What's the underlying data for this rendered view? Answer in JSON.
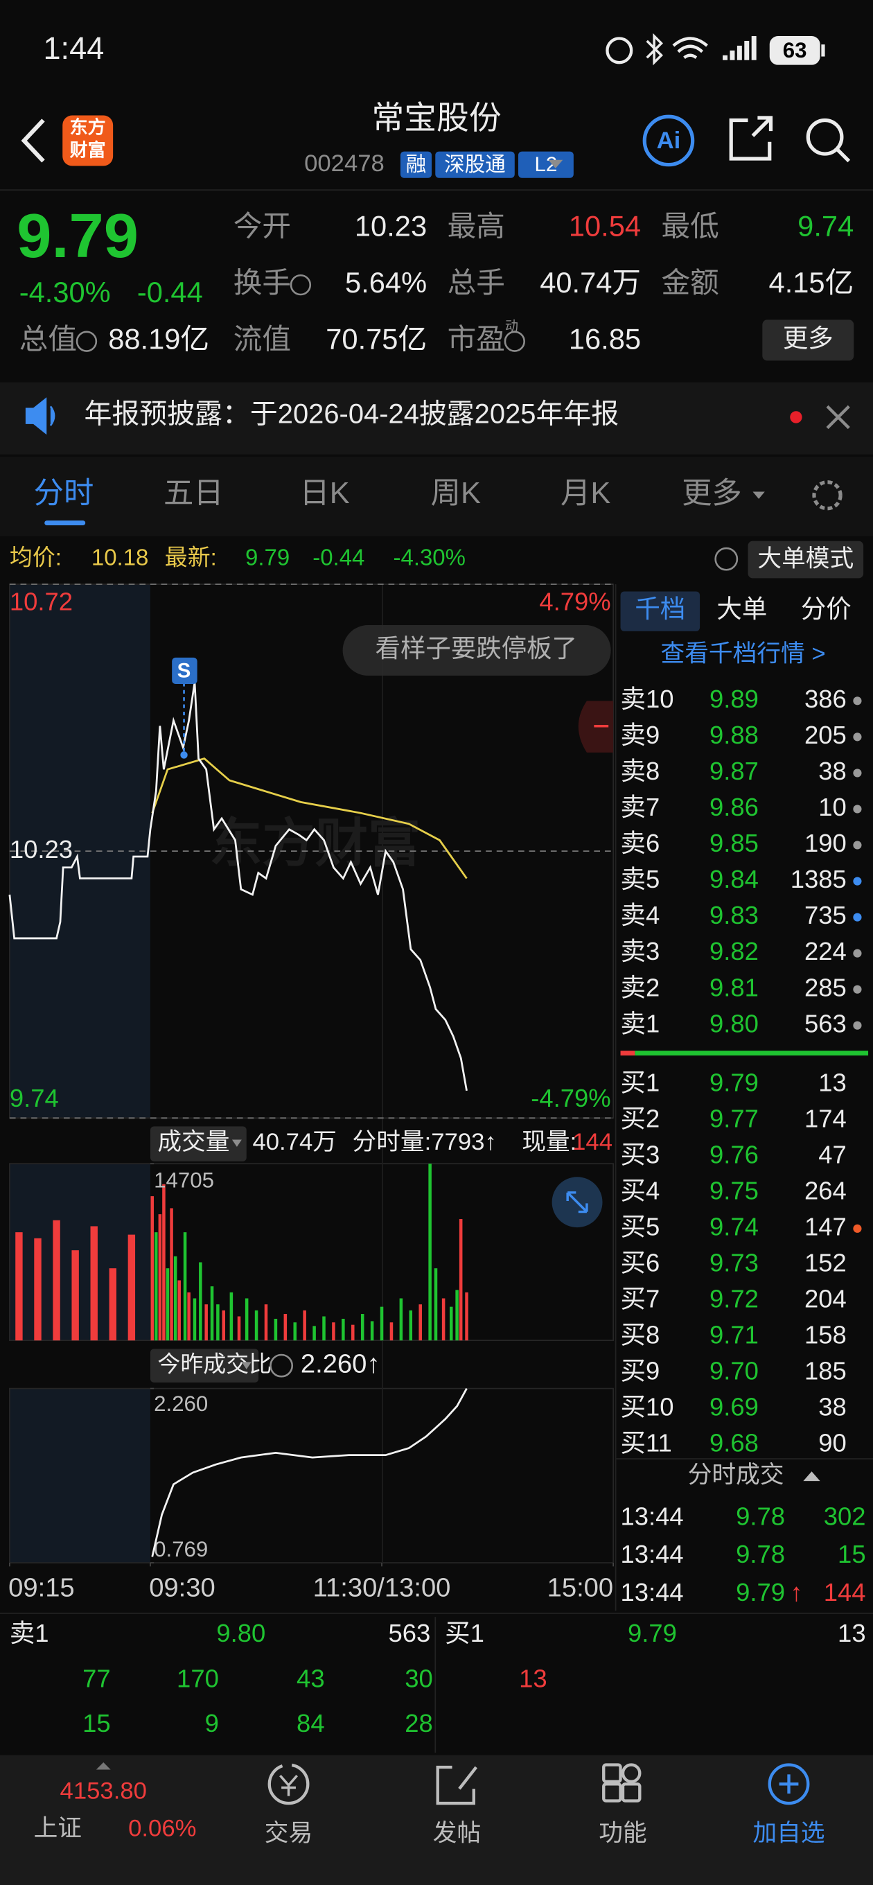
{
  "status_bar": {
    "time": "1:44",
    "battery": "63"
  },
  "header": {
    "logo": [
      "东方",
      "财富"
    ],
    "title": "常宝股份",
    "code": "002478",
    "badges": [
      "融",
      "深股通",
      "L2"
    ],
    "ai_button": "Ai"
  },
  "quote": {
    "price": "9.79",
    "change_pct": "-4.30%",
    "change": "-0.44",
    "stats": [
      {
        "label": "今开",
        "value": "10.23"
      },
      {
        "label": "最高",
        "value": "10.54",
        "color": "#f03c3c"
      },
      {
        "label": "最低",
        "value": "9.74",
        "color": "#1fc431"
      },
      {
        "label": "换手",
        "value": "5.64%"
      },
      {
        "label": "总手",
        "value": "40.74万"
      },
      {
        "label": "金额",
        "value": "4.15亿"
      },
      {
        "label": "总值",
        "value": "88.19亿"
      },
      {
        "label": "流值",
        "value": "70.75亿"
      },
      {
        "label": "市盈",
        "sup": "动",
        "value": "16.85"
      }
    ],
    "more": "更多"
  },
  "notice": "年报预披露：于2026-04-24披露2025年年报",
  "tabs": [
    "分时",
    "五日",
    "日K",
    "周K",
    "月K",
    "更多"
  ],
  "info_bar": {
    "avg_label": "均价:",
    "avg": "10.18",
    "last_label": "最新:",
    "last": "9.79",
    "change": "-0.44",
    "change_pct": "-4.30%",
    "mode_button": "大单模式"
  },
  "chart_data": [
    {
      "type": "line",
      "xlim": [
        -15,
        240
      ],
      "ylim": [
        9.74,
        10.72
      ],
      "yticks": [
        10.72,
        10.23,
        9.74
      ],
      "y2lim": [
        -4.79,
        4.79
      ],
      "y2ticks": [
        {
          "value": 4.79,
          "label": "4.79%"
        },
        {
          "value": -4.79,
          "label": "-4.79%"
        }
      ],
      "annotations": [
        "看样子要跌停板了",
        "S"
      ],
      "watermark": "东方财富",
      "series": [
        {
          "color": "#f2f2f2",
          "x": [
            -15,
            -14.5,
            -10,
            -9.6,
            -9.3,
            -8.4,
            -7.8,
            -7.5,
            -2,
            -1.8,
            -0.3,
            0,
            3,
            5,
            7,
            12,
            17,
            20,
            23,
            25,
            29,
            33,
            37,
            44,
            47,
            53,
            56,
            60,
            65,
            72,
            77,
            81,
            85,
            90,
            95,
            100,
            104,
            109,
            114,
            118,
            122,
            126,
            131,
            135,
            140,
            145,
            148,
            153,
            157,
            161,
            164
          ],
          "values": [
            10.15,
            10.07,
            10.07,
            10.1,
            10.2,
            10.2,
            10.22,
            10.18,
            10.18,
            10.22,
            10.22,
            10.27,
            10.34,
            10.46,
            10.38,
            10.47,
            10.42,
            10.47,
            10.54,
            10.4,
            10.38,
            10.27,
            10.29,
            10.25,
            10.16,
            10.15,
            10.19,
            10.18,
            10.24,
            10.27,
            10.26,
            10.25,
            10.27,
            10.25,
            10.2,
            10.18,
            10.21,
            10.17,
            10.2,
            10.15,
            10.23,
            10.21,
            10.16,
            10.05,
            10.03,
            9.98,
            9.94,
            9.92,
            9.89,
            9.85,
            9.79
          ]
        },
        {
          "color": "#e6cf4a",
          "x": [
            1,
            9,
            28,
            41,
            78,
            109,
            134,
            150,
            164
          ],
          "values": [
            10.3,
            10.38,
            10.4,
            10.36,
            10.32,
            10.3,
            10.28,
            10.25,
            10.18
          ]
        }
      ]
    },
    {
      "type": "bar",
      "title": "成交量",
      "total": "40.74万",
      "period_volume": "分时量:7793↑",
      "current_label": "现量:",
      "current": "144",
      "xlim": [
        -15,
        240
      ],
      "ylim": [
        0,
        14705
      ],
      "yticks": [
        14705
      ],
      "x": [
        -14,
        -12,
        -10,
        -8,
        -6,
        -4,
        -2,
        1,
        3,
        5,
        7,
        9,
        11,
        13,
        15,
        18,
        20,
        23,
        26,
        29,
        32,
        35,
        38,
        42,
        46,
        50,
        55,
        60,
        65,
        70,
        75,
        80,
        85,
        90,
        95,
        100,
        105,
        110,
        115,
        120,
        125,
        130,
        135,
        140,
        145,
        148,
        152,
        156,
        159,
        161,
        164
      ],
      "values": [
        9000,
        8500,
        10000,
        7500,
        9500,
        6000,
        8800,
        12000,
        9000,
        10500,
        13000,
        6000,
        11000,
        7000,
        5000,
        9000,
        4000,
        3500,
        6500,
        3000,
        4500,
        3000,
        2500,
        4000,
        2000,
        3500,
        2500,
        3000,
        1800,
        2200,
        1500,
        2500,
        1200,
        2000,
        1500,
        1800,
        1300,
        2200,
        1600,
        2800,
        1500,
        3500,
        2500,
        3000,
        14705,
        6000,
        3500,
        2800,
        4200,
        10100,
        4000
      ],
      "colors": [
        "#f03c3c",
        "#f03c3c",
        "#f03c3c",
        "#f03c3c",
        "#f03c3c",
        "#f03c3c",
        "#f03c3c",
        "#f03c3c",
        "#1fc431",
        "#f03c3c",
        "#f03c3c",
        "#1fc431",
        "#f03c3c",
        "#1fc431",
        "#f03c3c",
        "#1fc431",
        "#f03c3c",
        "#1fc431",
        "#1fc431",
        "#f03c3c",
        "#1fc431",
        "#1fc431",
        "#f03c3c",
        "#1fc431",
        "#f03c3c",
        "#1fc431",
        "#1fc431",
        "#f03c3c",
        "#1fc431",
        "#f03c3c",
        "#1fc431",
        "#f03c3c",
        "#1fc431",
        "#1fc431",
        "#f03c3c",
        "#1fc431",
        "#f03c3c",
        "#1fc431",
        "#1fc431",
        "#1fc431",
        "#f03c3c",
        "#1fc431",
        "#1fc431",
        "#f03c3c",
        "#1fc431",
        "#1fc431",
        "#f03c3c",
        "#1fc431",
        "#1fc431",
        "#f03c3c",
        "#f03c3c"
      ]
    },
    {
      "type": "line",
      "title": "今昨成交比",
      "current": "2.260↑",
      "xlim": [
        -15,
        240
      ],
      "xticks": [
        {
          "value": -15,
          "label": "09:15"
        },
        {
          "value": 0,
          "label": "09:30"
        },
        {
          "value": 120,
          "label": "11:30/13:00"
        },
        {
          "value": 240,
          "label": "15:00"
        }
      ],
      "ylim": [
        0.769,
        2.26
      ],
      "yticks": [
        {
          "value": 2.26,
          "label": "2.260"
        },
        0.769
      ],
      "series": [
        {
          "color": "#f2f2f2",
          "x": [
            1,
            6,
            12,
            22,
            34,
            47,
            65,
            84,
            103,
            122,
            134,
            143,
            153,
            159,
            164
          ],
          "values": [
            0.82,
            1.18,
            1.44,
            1.54,
            1.61,
            1.67,
            1.71,
            1.67,
            1.69,
            1.69,
            1.75,
            1.85,
            2.0,
            2.11,
            2.26
          ]
        }
      ]
    }
  ],
  "order_book": {
    "tabs": [
      "千档",
      "大单",
      "分价"
    ],
    "link": "查看千档行情 >",
    "asks": [
      {
        "label": "卖10",
        "price": "9.89",
        "volume": "386",
        "flag": "#9a9a9a"
      },
      {
        "label": "卖9",
        "price": "9.88",
        "volume": "205",
        "flag": "#9a9a9a"
      },
      {
        "label": "卖8",
        "price": "9.87",
        "volume": "38",
        "flag": "#9a9a9a"
      },
      {
        "label": "卖7",
        "price": "9.86",
        "volume": "10",
        "flag": "#9a9a9a"
      },
      {
        "label": "卖6",
        "price": "9.85",
        "volume": "190",
        "flag": "#9a9a9a"
      },
      {
        "label": "卖5",
        "price": "9.84",
        "volume": "1385",
        "flag": "#3d8cf0"
      },
      {
        "label": "卖4",
        "price": "9.83",
        "volume": "735",
        "flag": "#3d8cf0"
      },
      {
        "label": "卖3",
        "price": "9.82",
        "volume": "224",
        "flag": "#9a9a9a"
      },
      {
        "label": "卖2",
        "price": "9.81",
        "volume": "285",
        "flag": "#9a9a9a"
      },
      {
        "label": "卖1",
        "price": "9.80",
        "volume": "563",
        "flag": "#9a9a9a"
      }
    ],
    "bids": [
      {
        "label": "买1",
        "price": "9.79",
        "volume": "13"
      },
      {
        "label": "买2",
        "price": "9.77",
        "volume": "174"
      },
      {
        "label": "买3",
        "price": "9.76",
        "volume": "47"
      },
      {
        "label": "买4",
        "price": "9.75",
        "volume": "264"
      },
      {
        "label": "买5",
        "price": "9.74",
        "volume": "147",
        "flag": "#f05a28"
      },
      {
        "label": "买6",
        "price": "9.73",
        "volume": "152"
      },
      {
        "label": "买7",
        "price": "9.72",
        "volume": "204"
      },
      {
        "label": "买8",
        "price": "9.71",
        "volume": "158"
      },
      {
        "label": "买9",
        "price": "9.70",
        "volume": "185"
      },
      {
        "label": "买10",
        "price": "9.69",
        "volume": "38"
      },
      {
        "label": "买11",
        "price": "9.68",
        "volume": "90"
      }
    ]
  },
  "trades": {
    "title": "分时成交",
    "rows": [
      {
        "time": "13:44",
        "price": "9.78",
        "volume": "302"
      },
      {
        "time": "13:44",
        "price": "9.78",
        "volume": "15"
      },
      {
        "time": "13:44",
        "price": "9.79",
        "arrow": "↑",
        "volume": "144"
      }
    ]
  },
  "bottom_book": {
    "ask_label": "卖1",
    "ask_price": "9.80",
    "ask_volume": "563",
    "bid_label": "买1",
    "bid_price": "9.79",
    "bid_volume": "13",
    "ask_orders": [
      [
        "77",
        "170",
        "43",
        "30"
      ],
      [
        "15",
        "9",
        "84",
        "28"
      ]
    ],
    "bid_orders": [
      [
        "13"
      ]
    ]
  },
  "nav": {
    "index_value": "4153.80",
    "index_name": "上证",
    "index_change": "0.06%",
    "items": [
      "交易",
      "发帖",
      "功能",
      "加自选"
    ]
  }
}
